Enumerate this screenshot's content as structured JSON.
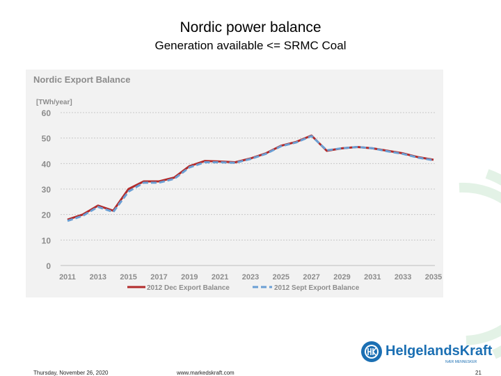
{
  "slide": {
    "title": "Nordic power balance",
    "subtitle": "Generation available <= SRMC Coal"
  },
  "footer": {
    "date": "Thursday, November 26, 2020",
    "url": "www.markedskraft.com",
    "page": "21"
  },
  "logo": {
    "name": "HelgelandsKraft",
    "tagline": "NÆR MENNESKER"
  },
  "colors": {
    "dec_series": "#b22a2a",
    "sept_series": "#6a9fd4",
    "chart_title": "#8c8c8c",
    "axis_text": "#8c8c8c",
    "logo": "#1b6fb3",
    "deco_green": "#cfe8d4"
  },
  "chart_data": {
    "type": "line",
    "title": "Nordic Export Balance",
    "ylabel": "[TWh/year]",
    "xlabel": "",
    "ylim": [
      0,
      60
    ],
    "yticks": [
      0,
      10,
      20,
      30,
      40,
      50,
      60
    ],
    "x": [
      2011,
      2012,
      2013,
      2014,
      2015,
      2016,
      2017,
      2018,
      2019,
      2020,
      2021,
      2022,
      2023,
      2024,
      2025,
      2026,
      2027,
      2028,
      2029,
      2030,
      2031,
      2032,
      2033,
      2034,
      2035
    ],
    "xticks": [
      "2011",
      "2013",
      "2015",
      "2017",
      "2019",
      "2021",
      "2023",
      "2025",
      "2027",
      "2029",
      "2031",
      "2033",
      "2035"
    ],
    "grid": true,
    "legend": "bottom",
    "series": [
      {
        "name": "2012 Dec Export Balance",
        "style": "solid",
        "values": [
          18,
          20,
          23.5,
          21.5,
          30,
          33,
          33,
          34.5,
          39,
          41,
          40.8,
          40.5,
          42,
          44,
          47,
          48.5,
          51,
          45,
          46,
          46.5,
          46,
          45,
          44,
          42.5,
          41.5
        ]
      },
      {
        "name": "2012 Sept Export Balance",
        "style": "dashed",
        "values": [
          17.5,
          19.5,
          23,
          21,
          29,
          32.5,
          32.5,
          34,
          38.5,
          40.5,
          40.5,
          40.3,
          41.8,
          43.8,
          46.8,
          48.3,
          50.8,
          45.2,
          46,
          46.5,
          46,
          44.8,
          43.8,
          42.3,
          41.3
        ]
      }
    ]
  }
}
